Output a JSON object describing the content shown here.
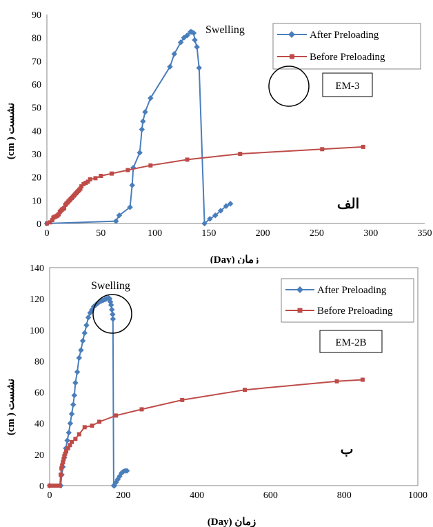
{
  "colors": {
    "after": "#4a7ebb",
    "before": "#be4b48",
    "axis": "#868686",
    "text": "#000000"
  },
  "chart_data": [
    {
      "type": "line",
      "xlabel": "زمان (Day)",
      "ylabel": "نشست ( cm)",
      "xlim": [
        0,
        350
      ],
      "ylim": [
        0,
        90
      ],
      "xticks": [
        0,
        50,
        100,
        150,
        200,
        250,
        300,
        350
      ],
      "yticks": [
        0,
        10,
        20,
        30,
        40,
        50,
        60,
        70,
        80,
        90
      ],
      "annotation": "Swelling",
      "tag": "EM-3",
      "persian_label": "الف",
      "grid": false,
      "legend_position": "top-right",
      "series": [
        {
          "name": "After Preloading",
          "marker": "diamond",
          "x": [
            0,
            64,
            67,
            77,
            79,
            80,
            86,
            88,
            89,
            91,
            96,
            114,
            118,
            124,
            127,
            130,
            133,
            134,
            136,
            137,
            139,
            141,
            146,
            151,
            156,
            161,
            166,
            170
          ],
          "y": [
            0,
            1,
            3.5,
            7,
            16.5,
            24,
            30.5,
            40.5,
            44,
            48,
            54,
            67.5,
            73,
            78,
            80,
            81,
            82.5,
            82.5,
            82,
            79,
            76,
            67,
            0,
            2,
            3.5,
            5.5,
            7.5,
            8.5
          ]
        },
        {
          "name": "Before Preloading",
          "marker": "square",
          "x": [
            0,
            3,
            5,
            6,
            7,
            8,
            9,
            10,
            11,
            12,
            13,
            14,
            15,
            16,
            17,
            18,
            19,
            20,
            21,
            22,
            23,
            24,
            25,
            26,
            27,
            28,
            29,
            30,
            31,
            32,
            34,
            36,
            38,
            40,
            45,
            50,
            60,
            75,
            96,
            130,
            179,
            255,
            293
          ],
          "y": [
            0,
            0.5,
            1.5,
            2.5,
            2.8,
            3,
            3.2,
            3.5,
            4,
            5,
            5.5,
            6,
            6.3,
            6.6,
            8,
            8.5,
            9,
            9.5,
            10,
            10.5,
            11,
            11.5,
            12,
            12.5,
            13,
            13.5,
            14,
            14.5,
            15,
            16,
            17,
            17.5,
            18,
            19,
            19.5,
            20.5,
            21.5,
            23,
            25,
            27.5,
            30,
            32,
            33
          ]
        }
      ]
    },
    {
      "type": "line",
      "xlabel": "زمان (Day)",
      "ylabel": "نشست ( cm)",
      "xlim": [
        0,
        1000
      ],
      "ylim": [
        0,
        140
      ],
      "xticks": [
        0,
        200,
        400,
        600,
        800,
        1000
      ],
      "yticks": [
        0,
        20,
        40,
        60,
        80,
        100,
        120,
        140
      ],
      "annotation": "Swelling",
      "tag": "EM-2B",
      "persian_label": "ب",
      "grid": false,
      "legend_position": "top-right",
      "series": [
        {
          "name": "After Preloading",
          "marker": "diamond",
          "x": [
            0,
            30,
            33,
            36,
            40,
            44,
            48,
            52,
            56,
            60,
            64,
            67,
            70,
            75,
            80,
            85,
            90,
            95,
            100,
            105,
            110,
            115,
            120,
            125,
            130,
            135,
            140,
            145,
            150,
            155,
            160,
            163,
            165,
            167,
            169,
            171,
            172,
            174,
            176,
            180,
            185,
            190,
            195,
            200,
            205,
            210
          ],
          "y": [
            0,
            0,
            7,
            12,
            18,
            24,
            29,
            34,
            40,
            46,
            52,
            58,
            66,
            73,
            82,
            87,
            93,
            98,
            103,
            108,
            111,
            113,
            115,
            116,
            117,
            118,
            118.5,
            119,
            119.5,
            120,
            120.5,
            120,
            118,
            116,
            113,
            110,
            107,
            0,
            0,
            2,
            4,
            6,
            8,
            9,
            9.5,
            9.5
          ]
        },
        {
          "name": "Before Preloading",
          "marker": "square",
          "x": [
            0,
            10,
            20,
            28,
            30,
            32,
            34,
            36,
            38,
            40,
            42,
            45,
            50,
            55,
            60,
            70,
            80,
            95,
            115,
            135,
            180,
            250,
            360,
            530,
            780,
            850
          ],
          "y": [
            0,
            0,
            0,
            0,
            7,
            11,
            13,
            15,
            17,
            19,
            20.5,
            22,
            24,
            26,
            28,
            30,
            33,
            37.5,
            38.5,
            41,
            45,
            49,
            55,
            61.5,
            67,
            68
          ]
        }
      ]
    }
  ]
}
